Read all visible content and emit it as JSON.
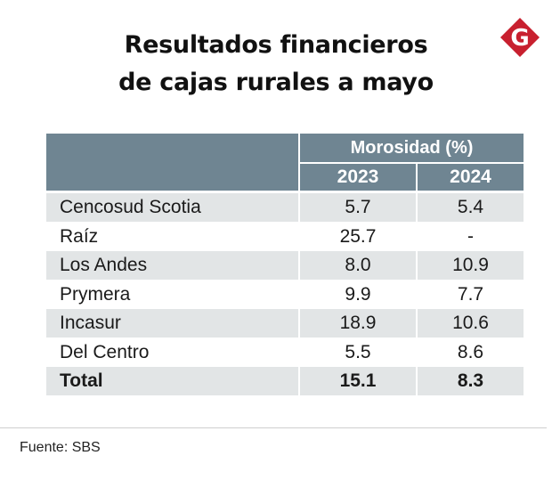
{
  "title_line1": "Resultados financieros",
  "title_line2": "de cajas rurales a mayo",
  "logo_letter": "G",
  "chart_data": {
    "type": "table",
    "title": "Resultados financieros de cajas rurales a mayo",
    "group_header": "Morosidad (%)",
    "columns": [
      "2023",
      "2024"
    ],
    "rows": [
      {
        "name": "Cencosud Scotia",
        "v2023": "5.7",
        "v2024": "5.4"
      },
      {
        "name": "Raíz",
        "v2023": "25.7",
        "v2024": "-"
      },
      {
        "name": "Los Andes",
        "v2023": "8.0",
        "v2024": "10.9"
      },
      {
        "name": "Prymera",
        "v2023": "9.9",
        "v2024": "7.7"
      },
      {
        "name": "Incasur",
        "v2023": "18.9",
        "v2024": "10.6"
      },
      {
        "name": "Del Centro",
        "v2023": "5.5",
        "v2024": "8.6"
      }
    ],
    "total": {
      "name": "Total",
      "v2023": "15.1",
      "v2024": "8.3"
    }
  },
  "source": "Fuente: SBS",
  "colors": {
    "header": "#6f8592",
    "shade": "#e2e5e6",
    "logo": "#c8202f"
  }
}
